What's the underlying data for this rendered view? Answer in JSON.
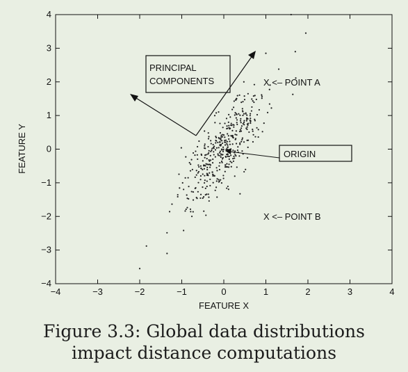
{
  "chart_data": {
    "type": "scatter",
    "xlabel": "FEATURE X",
    "ylabel": "FEATURE Y",
    "xlim": [
      -4,
      4
    ],
    "ylim": [
      -4,
      4
    ],
    "xticks": [
      "-4",
      "-3",
      "-2",
      "-1",
      "0",
      "1",
      "2",
      "3",
      "4"
    ],
    "yticks": [
      "-4",
      "-3",
      "-2",
      "-1",
      "0",
      "1",
      "2",
      "3",
      "4"
    ],
    "grid": false,
    "point_color": "#222222",
    "cluster": {
      "center": [
        0,
        0
      ],
      "principal_direction_slope": 1.95,
      "major_spread": 1.15,
      "minor_spread": 0.28,
      "n_points": 420
    },
    "outliers": [
      {
        "x": 1.6,
        "y": 4.0
      },
      {
        "x": 1.95,
        "y": 3.45
      },
      {
        "x": 1.7,
        "y": 2.9
      },
      {
        "x": 1.0,
        "y": 2.85
      },
      {
        "x": -2.0,
        "y": -3.55
      },
      {
        "x": -1.35,
        "y": -3.1
      }
    ],
    "annotations": [
      {
        "text": "PRINCIPAL",
        "boxed": true
      },
      {
        "text": "COMPONENTS",
        "boxed": true
      },
      {
        "text": "X <– POINT A",
        "x": 1.0,
        "y": 2.0
      },
      {
        "text": "ORIGIN",
        "boxed": true
      },
      {
        "text": "X <– POINT B",
        "x": 1.0,
        "y": -2.0
      }
    ]
  },
  "caption": {
    "line1": "Figure 3.3: Global data distributions",
    "line2": "impact distance computations"
  }
}
